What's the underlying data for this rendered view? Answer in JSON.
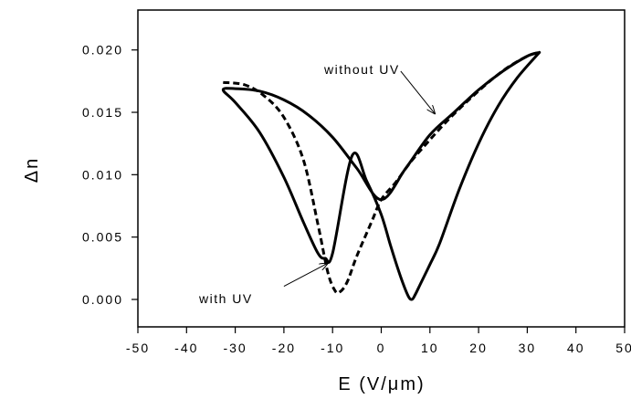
{
  "chart_data": {
    "type": "line",
    "xlabel": "E (V/μm)",
    "ylabel": "Δn",
    "xlim": [
      -50,
      50
    ],
    "ylim": [
      -0.0022,
      0.0232
    ],
    "x_ticks": [
      -50,
      -40,
      -30,
      -20,
      -10,
      0,
      10,
      20,
      30,
      40,
      50
    ],
    "x_tick_labels": [
      "-50",
      "-40",
      "-30",
      "-20",
      "-10",
      "0",
      "10",
      "20",
      "30",
      "40",
      "50"
    ],
    "y_ticks": [
      0.0,
      0.005,
      0.01,
      0.015,
      0.02
    ],
    "y_tick_labels": [
      "0.000",
      "0.005",
      "0.010",
      "0.015",
      "0.020"
    ],
    "grid": false,
    "series": [
      {
        "name": "without UV",
        "style": "solid",
        "color": "#000000",
        "x": [
          32.5,
          28,
          24,
          20,
          16,
          12,
          10,
          8,
          7,
          6.3,
          5.5,
          4,
          2,
          0,
          -3,
          -6,
          -10,
          -11.5,
          -13,
          -16,
          -20,
          -25,
          -30,
          -32.5,
          -30,
          -25,
          -20,
          -15,
          -10,
          -5,
          0,
          5,
          10,
          15,
          20,
          25,
          30,
          32.5
        ],
        "y": [
          0.0198,
          0.0178,
          0.0155,
          0.0125,
          0.0088,
          0.0045,
          0.0028,
          0.0012,
          0.0004,
          0.0,
          0.0003,
          0.0018,
          0.0042,
          0.0068,
          0.0095,
          0.0115,
          0.0037,
          0.0033,
          0.0037,
          0.0062,
          0.0098,
          0.0134,
          0.0158,
          0.0168,
          0.0169,
          0.0167,
          0.016,
          0.0148,
          0.013,
          0.0105,
          0.008,
          0.0105,
          0.0132,
          0.015,
          0.0168,
          0.0183,
          0.0195,
          0.0198
        ]
      },
      {
        "name": "with UV",
        "style": "dashed",
        "color": "#000000",
        "x": [
          -32.5,
          -28,
          -24,
          -20,
          -16,
          -13,
          -11,
          -9.5,
          -8.5,
          -7,
          -5,
          -2,
          0,
          3,
          6,
          10,
          14,
          18,
          22,
          26,
          30,
          32.5
        ],
        "y": [
          0.0174,
          0.0172,
          0.0163,
          0.0146,
          0.0112,
          0.006,
          0.0022,
          0.0007,
          0.0006,
          0.0014,
          0.0035,
          0.0062,
          0.008,
          0.0094,
          0.011,
          0.0128,
          0.0145,
          0.016,
          0.0174,
          0.0186,
          0.0195,
          0.0198
        ]
      }
    ],
    "annotations": [
      {
        "text": "without UV",
        "arrow_tail": [
          4,
          0.0183
        ],
        "arrow_head": [
          11,
          0.0149
        ]
      },
      {
        "text": "with UV",
        "arrow_tail": [
          -20,
          0.00105
        ],
        "arrow_head": [
          -11,
          0.0029
        ]
      }
    ]
  },
  "annotation_labels": {
    "without_uv": "without UV",
    "with_uv": "with UV"
  }
}
